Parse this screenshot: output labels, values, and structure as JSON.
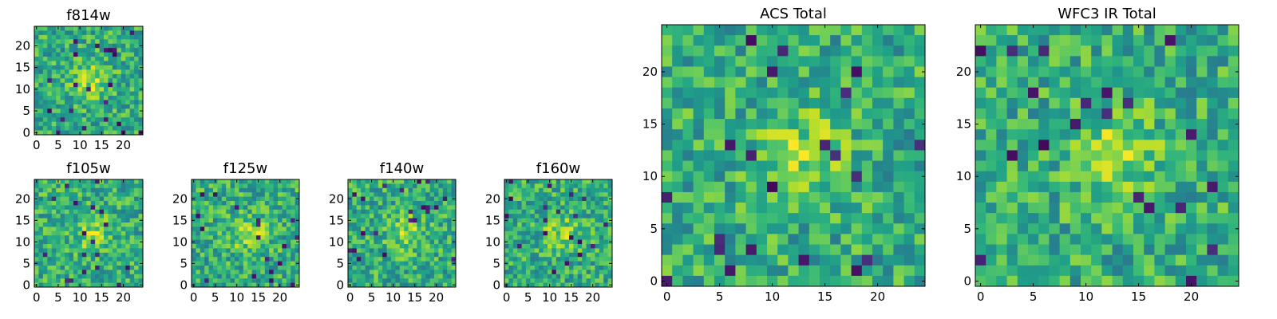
{
  "chart_data": [
    {
      "type": "heatmap",
      "title": "f814w",
      "x_ticks": [
        0,
        5,
        10,
        15,
        20
      ],
      "y_ticks": [
        0,
        5,
        10,
        15,
        20
      ],
      "xlim": [
        0,
        24
      ],
      "ylim": [
        0,
        24
      ],
      "grid_size": 25,
      "colormap": "viridis",
      "grid": false
    },
    {
      "type": "heatmap",
      "title": "f105w",
      "x_ticks": [
        0,
        5,
        10,
        15,
        20
      ],
      "y_ticks": [
        0,
        5,
        10,
        15,
        20
      ],
      "xlim": [
        0,
        24
      ],
      "ylim": [
        0,
        24
      ],
      "grid_size": 25,
      "colormap": "viridis",
      "grid": false
    },
    {
      "type": "heatmap",
      "title": "f125w",
      "x_ticks": [
        0,
        5,
        10,
        15,
        20
      ],
      "y_ticks": [
        0,
        5,
        10,
        15,
        20
      ],
      "xlim": [
        0,
        24
      ],
      "ylim": [
        0,
        24
      ],
      "grid_size": 25,
      "colormap": "viridis",
      "grid": false
    },
    {
      "type": "heatmap",
      "title": "f140w",
      "x_ticks": [
        0,
        5,
        10,
        15,
        20
      ],
      "y_ticks": [
        0,
        5,
        10,
        15,
        20
      ],
      "xlim": [
        0,
        24
      ],
      "ylim": [
        0,
        24
      ],
      "grid_size": 25,
      "colormap": "viridis",
      "grid": false
    },
    {
      "type": "heatmap",
      "title": "f160w",
      "x_ticks": [
        0,
        5,
        10,
        15,
        20
      ],
      "y_ticks": [
        0,
        5,
        10,
        15,
        20
      ],
      "xlim": [
        0,
        24
      ],
      "ylim": [
        0,
        24
      ],
      "grid_size": 25,
      "colormap": "viridis",
      "grid": false
    },
    {
      "type": "heatmap",
      "title": "ACS Total",
      "x_ticks": [
        0,
        5,
        10,
        15,
        20
      ],
      "y_ticks": [
        0,
        5,
        10,
        15,
        20
      ],
      "xlim": [
        0,
        24
      ],
      "ylim": [
        0,
        24
      ],
      "grid_size": 25,
      "colormap": "viridis",
      "grid": false
    },
    {
      "type": "heatmap",
      "title": "WFC3 IR Total",
      "x_ticks": [
        0,
        5,
        10,
        15,
        20
      ],
      "y_ticks": [
        0,
        5,
        10,
        15,
        20
      ],
      "xlim": [
        0,
        24
      ],
      "ylim": [
        0,
        24
      ],
      "grid_size": 25,
      "colormap": "viridis",
      "grid": false
    }
  ]
}
